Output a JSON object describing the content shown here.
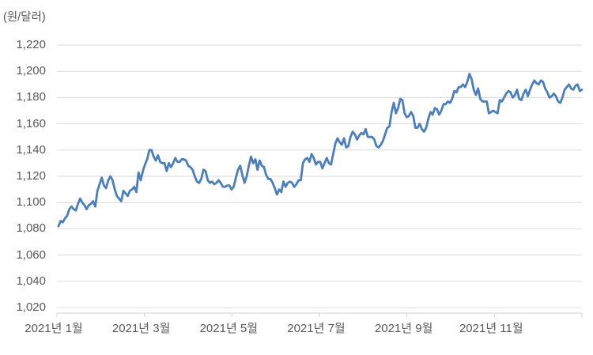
{
  "chart": {
    "unit_label": "(원/달러)",
    "line_color": "#4a7ebc",
    "grid_color": "#d9d9d9",
    "axis_color": "#d9d9d9",
    "text_color": "#595959",
    "background": "#ffffff"
  },
  "chart_data": {
    "type": "line",
    "title": "",
    "ylabel": "(원/달러)",
    "xlabel": "",
    "ylim": [
      1020,
      1220
    ],
    "grid": "horizontal",
    "legend": "none",
    "y_ticks": [
      1020,
      1040,
      1060,
      1080,
      1100,
      1120,
      1140,
      1160,
      1180,
      1200,
      1220
    ],
    "x_tick_labels": [
      "2021년 1월",
      "2021년 3월",
      "2021년 5월",
      "2021년 7월",
      "2021년 9월",
      "2021년 11월"
    ],
    "series": [
      {
        "name": "원/달러",
        "values": [
          1082,
          1086,
          1085,
          1088,
          1090,
          1095,
          1097,
          1095,
          1094,
          1099,
          1103,
          1100,
          1098,
          1095,
          1098,
          1099,
          1101,
          1097,
          1109,
          1114,
          1119,
          1113,
          1111,
          1117,
          1120,
          1117,
          1110,
          1105,
          1103,
          1101,
          1109,
          1107,
          1105,
          1109,
          1110,
          1112,
          1108,
          1123,
          1117,
          1124,
          1129,
          1133,
          1140,
          1140,
          1135,
          1132,
          1136,
          1131,
          1130,
          1130,
          1124,
          1130,
          1127,
          1130,
          1134,
          1131,
          1131,
          1133,
          1133,
          1132,
          1128,
          1127,
          1125,
          1120,
          1116,
          1115,
          1118,
          1125,
          1124,
          1117,
          1115,
          1116,
          1114,
          1115,
          1117,
          1115,
          1112,
          1112,
          1113,
          1113,
          1110,
          1112,
          1119,
          1125,
          1128,
          1121,
          1115,
          1120,
          1128,
          1135,
          1130,
          1133,
          1125,
          1132,
          1128,
          1127,
          1121,
          1118,
          1118,
          1115,
          1111,
          1106,
          1110,
          1108,
          1116,
          1112,
          1115,
          1116,
          1115,
          1112,
          1114,
          1117,
          1117,
          1130,
          1133,
          1134,
          1131,
          1137,
          1134,
          1129,
          1131,
          1131,
          1126,
          1130,
          1134,
          1130,
          1129,
          1137,
          1145,
          1149,
          1146,
          1144,
          1149,
          1142,
          1143,
          1150,
          1154,
          1152,
          1148,
          1151,
          1153,
          1152,
          1156,
          1150,
          1150,
          1150,
          1148,
          1143,
          1142,
          1144,
          1147,
          1152,
          1157,
          1158,
          1169,
          1176,
          1168,
          1172,
          1179,
          1178,
          1168,
          1165,
          1166,
          1169,
          1166,
          1157,
          1157,
          1160,
          1156,
          1154,
          1157,
          1164,
          1169,
          1167,
          1172,
          1171,
          1167,
          1170,
          1175,
          1175,
          1177,
          1176,
          1179,
          1185,
          1184,
          1188,
          1188,
          1190,
          1188,
          1192,
          1198,
          1194,
          1186,
          1182,
          1187,
          1179,
          1177,
          1177,
          1177,
          1168,
          1169,
          1170,
          1169,
          1168,
          1178,
          1177,
          1180,
          1183,
          1185,
          1184,
          1180,
          1182,
          1186,
          1179,
          1178,
          1183,
          1186,
          1181,
          1186,
          1190,
          1193,
          1191,
          1190,
          1193,
          1192,
          1187,
          1184,
          1180,
          1181,
          1183,
          1181,
          1177,
          1176,
          1180,
          1186,
          1188,
          1190,
          1187,
          1186,
          1189,
          1190,
          1185,
          1186
        ]
      }
    ]
  }
}
